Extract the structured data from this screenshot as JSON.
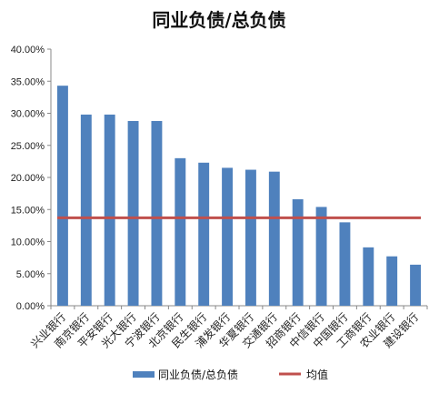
{
  "chart_data": {
    "type": "bar",
    "title": "同业负债/总负债",
    "categories": [
      "兴业银行",
      "南京银行",
      "平安银行",
      "光大银行",
      "宁波银行",
      "北京银行",
      "民生银行",
      "浦发银行",
      "华夏银行",
      "交通银行",
      "招商银行",
      "中信银行",
      "中国银行",
      "工商银行",
      "农业银行",
      "建设银行"
    ],
    "series": [
      {
        "name": "同业负债/总负债",
        "type": "bar",
        "color": "#4F81BD",
        "values": [
          0.343,
          0.298,
          0.298,
          0.288,
          0.288,
          0.23,
          0.223,
          0.215,
          0.212,
          0.209,
          0.166,
          0.154,
          0.13,
          0.091,
          0.077,
          0.064
        ]
      },
      {
        "name": "均值",
        "type": "line",
        "color": "#C0504D",
        "value": 0.137
      }
    ],
    "ylim": [
      0,
      0.4
    ],
    "yticks": [
      "0.00%",
      "5.00%",
      "10.00%",
      "15.00%",
      "20.00%",
      "25.00%",
      "30.00%",
      "35.00%",
      "40.00%"
    ],
    "grid": false,
    "legend_position": "bottom"
  }
}
